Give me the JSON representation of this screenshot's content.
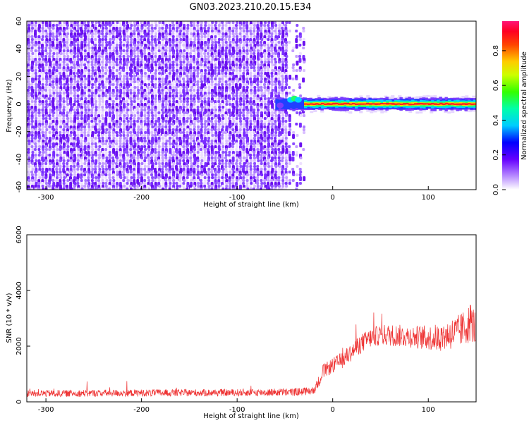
{
  "title": "GN03.2023.210.20.15.E34",
  "chart_data": [
    {
      "type": "heatmap",
      "xlabel": "Height of straight line (km)",
      "ylabel": "Frequency (Hz)",
      "xlim": [
        -320,
        150
      ],
      "ylim": [
        -62,
        60
      ],
      "x_ticks": [
        -300,
        -200,
        -100,
        0,
        100
      ],
      "x_tick_labels": [
        "-300",
        "-200",
        "-100",
        "0",
        "100"
      ],
      "y_ticks": [
        -60,
        -40,
        -20,
        0,
        20,
        40,
        60
      ],
      "y_tick_labels": [
        "-60",
        "-40",
        "-20",
        "0",
        "20",
        "40",
        "60"
      ],
      "colorbar": {
        "label": "Normalized spectral amplitude",
        "ticks": [
          0.0,
          0.2,
          0.4,
          0.6,
          0.8
        ],
        "tick_labels": [
          "0.0",
          "0.2",
          "0.4",
          "0.6",
          "0.8"
        ],
        "range": [
          0,
          0.97
        ],
        "colors": [
          "#ffffff",
          "#8b00ff",
          "#0000ff",
          "#00ffff",
          "#00ff00",
          "#ffff00",
          "#ff8000",
          "#ff0000",
          "#ff1493"
        ]
      },
      "noise_region": {
        "x": [
          -320,
          -30
        ],
        "frequency": [
          -62,
          60
        ],
        "amplitude": 0.15
      },
      "signal_band": {
        "x": [
          -60,
          150
        ],
        "frequency_center": 0,
        "frequency_halfwidth": 3,
        "peak_amplitude": 0.9
      },
      "grid": false
    },
    {
      "type": "line",
      "xlabel": "Height of straight line (km)",
      "ylabel": "SNR (10 * v/v)",
      "xlim": [
        -320,
        150
      ],
      "ylim": [
        0,
        6000
      ],
      "x_ticks": [
        -300,
        -200,
        -100,
        0,
        100
      ],
      "x_tick_labels": [
        "-300",
        "-200",
        "-100",
        "0",
        "100"
      ],
      "y_ticks": [
        0,
        2000,
        4000,
        6000
      ],
      "y_tick_labels": [
        "0",
        "2000",
        "4000",
        "6000"
      ],
      "series": [
        {
          "color": "#ee3333",
          "x": [
            -320,
            -200,
            -100,
            -40,
            -20,
            -15,
            -10,
            0,
            10,
            20,
            30,
            40,
            50,
            60,
            80,
            100,
            110,
            120,
            130,
            140,
            145,
            150
          ],
          "y": [
            300,
            320,
            330,
            350,
            400,
            700,
            1100,
            1300,
            1500,
            1800,
            2100,
            2300,
            2400,
            2400,
            2350,
            2300,
            2300,
            2400,
            2500,
            2700,
            2900,
            2600
          ],
          "noise_amplitude": [
            250,
            260,
            260,
            280,
            300,
            400,
            500,
            550,
            600,
            650,
            700,
            700,
            750,
            800,
            800,
            900,
            1000,
            1100,
            1200,
            1300,
            1500,
            1200
          ]
        }
      ],
      "grid": false
    }
  ]
}
